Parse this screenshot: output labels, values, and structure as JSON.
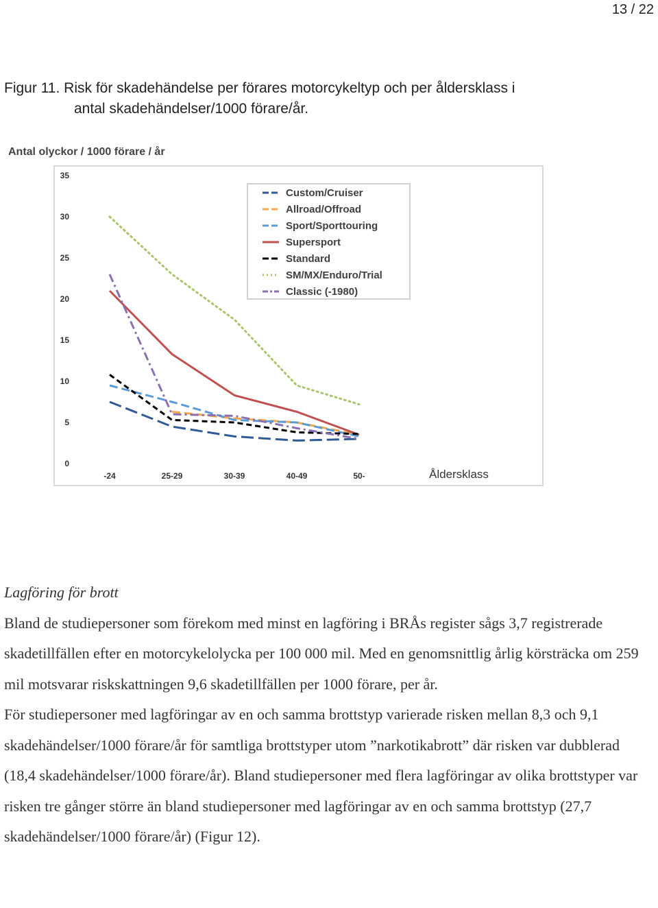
{
  "page_number": "13 / 22",
  "caption": {
    "line1": "Figur 11. Risk för skadehändelse per förares motorcykeltyp och per åldersklass i",
    "line2": "antal skadehändelser/1000 förare/år."
  },
  "chart_data": {
    "type": "line",
    "ylabel": "Antal olyckor / 1000 förare / år",
    "xlabel": "Åldersklass",
    "categories": [
      "-24",
      "25-29",
      "30-39",
      "40-49",
      "50-"
    ],
    "yticks": [
      "0",
      "5",
      "10",
      "15",
      "20",
      "25",
      "30",
      "35"
    ],
    "ylim": [
      0,
      35
    ],
    "grid": false,
    "legend_position": "top-right",
    "series": [
      {
        "name": "Custom/Cruiser",
        "color": "#2e5b93",
        "dash": "long-dash",
        "values": [
          7.5,
          4.5,
          3.3,
          2.8,
          3.0
        ]
      },
      {
        "name": "Allroad/Offroad",
        "color": "#f5a94a",
        "dash": "dash",
        "values": [
          null,
          6.3,
          5.5,
          5.0,
          3.5
        ]
      },
      {
        "name": "Sport/Sporttouring",
        "color": "#5b9bd5",
        "dash": "dash",
        "values": [
          9.5,
          7.5,
          5.3,
          5.0,
          3.3
        ]
      },
      {
        "name": "Supersport",
        "color": "#c0504d",
        "dash": "solid",
        "values": [
          21.0,
          13.3,
          8.3,
          6.3,
          3.5
        ]
      },
      {
        "name": "Standard",
        "color": "#000000",
        "dash": "short-dash",
        "values": [
          10.8,
          5.3,
          5.0,
          3.8,
          3.6
        ]
      },
      {
        "name": "SM/MX/Enduro/Trial",
        "color": "#a9c46b",
        "dash": "dot",
        "values": [
          30.0,
          23.0,
          17.5,
          9.5,
          7.2
        ]
      },
      {
        "name": "Classic (-1980)",
        "color": "#8a70b3",
        "dash": "dash-dot",
        "values": [
          23.0,
          6.0,
          5.8,
          4.3,
          3.0
        ]
      }
    ]
  },
  "section": {
    "heading": "Lagföring för brott",
    "paragraph1": "Bland de studiepersoner som förekom med minst en lagföring i BRÅs register sågs 3,7 registrerade skadetillfällen efter en motorcykelolycka per 100 000 mil. Med en genomsnittlig årlig körsträcka om 259 mil motsvarar riskskattningen 9,6 skadetillfällen per 1000 förare, per år.",
    "paragraph2": "För studiepersoner med lagföringar av en och samma brottstyp varierade risken mellan 8,3 och 9,1 skadehändelser/1000 förare/år för samtliga brottstyper utom ”narkotikabrott” där risken var dubblerad (18,4 skadehändelser/1000 förare/år). Bland studiepersoner med flera lagföringar av olika brottstyper var risken tre gånger större än bland studiepersoner med lagföringar av en och samma brottstyp (27,7 skadehändelser/1000 förare/år) (Figur 12)."
  }
}
